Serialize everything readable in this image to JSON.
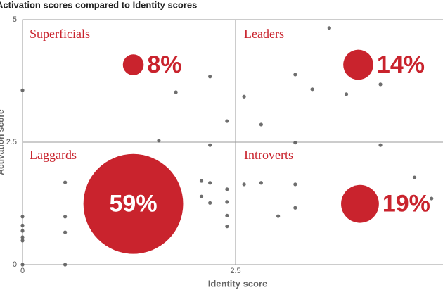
{
  "chart_data": {
    "type": "scatter",
    "title": "Activation scores compared to Identity scores",
    "xlabel": "Identity score",
    "ylabel": "Activation score",
    "xlim": [
      0,
      5
    ],
    "ylim": [
      0,
      5
    ],
    "xticks": [
      0,
      2.5
    ],
    "yticks": [
      0,
      2.5,
      5
    ],
    "grid": true,
    "series": [
      {
        "color": "#555555",
        "x": [
          0,
          0,
          0,
          0,
          0,
          0,
          0,
          0.5,
          0.5,
          0.5,
          0.5,
          1.4,
          1.4,
          1.4,
          1.4,
          1.6,
          1.6,
          1.6,
          1.6,
          1.8,
          2.1,
          2.1,
          2.2,
          2.2,
          2.2,
          2.2,
          2.4,
          2.4,
          2.4,
          2.4,
          2.4,
          2.6,
          2.6,
          2.8,
          2.8,
          3.0,
          3.2,
          3.2,
          3.2,
          3.2,
          3.4,
          3.6,
          3.8,
          4.2,
          4.2,
          4.6,
          4.8
        ],
        "values": [
          3.56,
          0.98,
          0.8,
          0.69,
          0.56,
          0.49,
          0,
          1.68,
          0.98,
          0.66,
          0,
          2.2,
          1.67,
          1.5,
          0.78,
          1.68,
          1.55,
          1.38,
          2.53,
          3.52,
          1.71,
          1.39,
          3.84,
          2.44,
          1.67,
          1.26,
          2.93,
          1.54,
          1.28,
          1.0,
          0.78,
          3.43,
          1.64,
          2.86,
          1.67,
          0.99,
          3.88,
          2.49,
          1.64,
          1.16,
          3.58,
          4.83,
          3.48,
          3.68,
          2.44,
          1.78,
          1.35
        ]
      }
    ],
    "bubbles": {
      "color": "#c9232d",
      "labels": [
        "Superficials",
        "Leaders",
        "Laggards",
        "Introverts"
      ],
      "x": [
        1.3,
        3.94,
        1.3,
        3.96
      ],
      "y": [
        4.08,
        4.08,
        1.24,
        1.24
      ],
      "values": [
        8,
        14,
        59,
        19
      ],
      "value_labels": [
        "8%",
        "14%",
        "59%",
        "19%"
      ]
    }
  }
}
